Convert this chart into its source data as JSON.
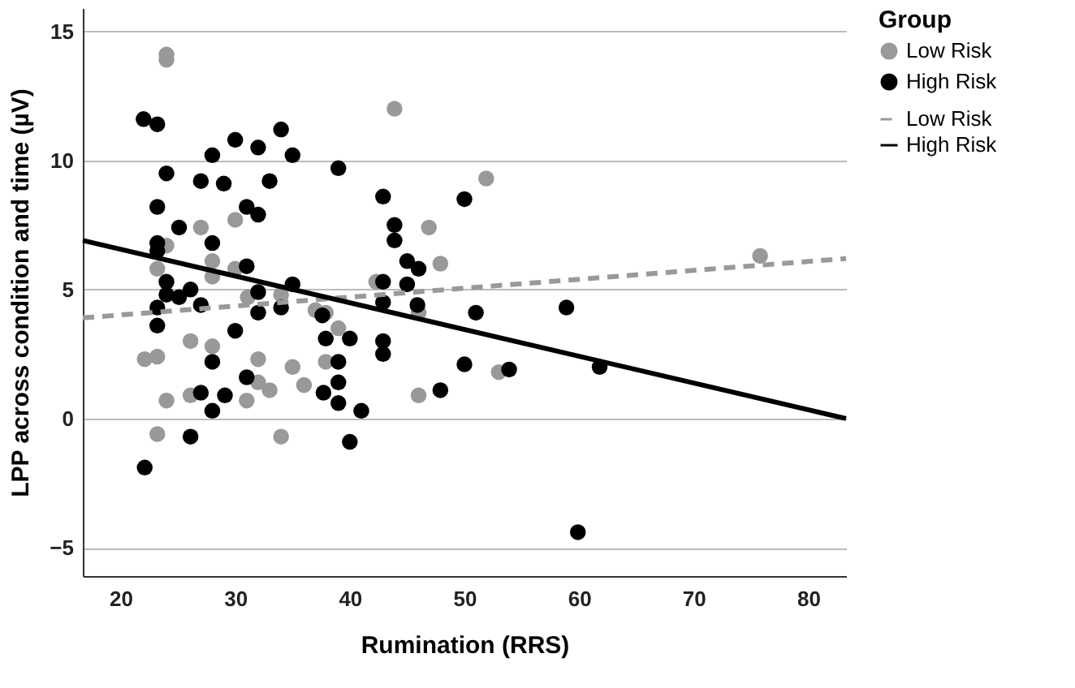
{
  "chart_data": {
    "type": "scatter",
    "xlabel": "Rumination (RRS)",
    "ylabel": "LPP across condition and time (µV)",
    "legend_title": "Group",
    "xlim": [
      16.7,
      83.3
    ],
    "xticks": [
      20,
      30,
      40,
      50,
      60,
      70,
      80
    ],
    "ylim": [
      -6.1,
      15.9
    ],
    "yticks": [
      -5,
      0,
      5,
      10,
      15
    ],
    "grid": "y",
    "legend": "top right",
    "series": [
      {
        "name": "Low Risk",
        "marker": "circle",
        "color": "#999999",
        "x": [
          24.0,
          24.0,
          43.9,
          27.0,
          30.0,
          24.0,
          23.2,
          28.0,
          28.0,
          30.0,
          46.9,
          47.9,
          42.3,
          31.1,
          34.0,
          37.0,
          46.0,
          51.9,
          75.8,
          22.1,
          23.2,
          26.1,
          28.0,
          32.0,
          35.0,
          36.0,
          32.0,
          33.0,
          31.0,
          26.1,
          24.0,
          23.2,
          34.0,
          37.9,
          39.0,
          37.9,
          46.0,
          53.0
        ],
        "values": [
          13.9,
          14.1,
          12.0,
          7.4,
          7.7,
          6.7,
          5.8,
          6.1,
          5.5,
          5.8,
          7.4,
          6.0,
          5.3,
          4.7,
          4.8,
          4.2,
          4.1,
          9.3,
          6.3,
          2.3,
          2.4,
          3.0,
          2.8,
          2.3,
          2.0,
          1.3,
          1.4,
          1.1,
          0.7,
          0.9,
          0.7,
          -0.6,
          -0.7,
          4.1,
          3.5,
          2.2,
          0.9,
          1.8
        ]
      },
      {
        "name": "High Risk",
        "marker": "circle",
        "color": "#000000",
        "x": [
          22.0,
          23.2,
          24.0,
          28.0,
          27.0,
          29.0,
          30.0,
          32.0,
          34.0,
          35.0,
          33.0,
          31.0,
          32.0,
          39.0,
          23.2,
          25.1,
          23.2,
          23.2,
          28.0,
          31.0,
          24.0,
          24.0,
          25.1,
          26.1,
          32.0,
          35.0,
          34.0,
          27.0,
          23.2,
          42.9,
          43.9,
          43.9,
          45.0,
          46.0,
          45.0,
          42.9,
          42.9,
          50.0,
          51.0,
          37.6,
          23.2,
          32.0,
          30.0,
          37.9,
          40.0,
          28.0,
          31.0,
          27.0,
          29.1,
          28.0,
          37.7,
          39.0,
          39.0,
          39.0,
          41.0,
          40.0,
          26.1,
          22.1,
          42.9,
          42.9,
          47.9,
          50.0,
          45.9,
          58.9,
          53.9,
          61.8,
          59.9
        ],
        "values": [
          11.6,
          11.4,
          9.5,
          10.2,
          9.2,
          9.1,
          10.8,
          10.5,
          11.2,
          10.2,
          9.2,
          8.2,
          7.9,
          9.7,
          8.2,
          7.4,
          6.8,
          6.5,
          6.8,
          5.9,
          5.3,
          4.8,
          4.7,
          5.0,
          4.9,
          5.2,
          4.3,
          4.4,
          4.3,
          8.6,
          7.5,
          6.9,
          6.1,
          5.8,
          5.2,
          5.3,
          4.5,
          8.5,
          4.1,
          4.0,
          3.6,
          4.1,
          3.4,
          3.1,
          3.1,
          2.2,
          1.6,
          1.0,
          0.9,
          0.3,
          1.0,
          2.2,
          1.4,
          0.6,
          0.3,
          -0.9,
          -0.7,
          -1.9,
          3.0,
          2.5,
          1.1,
          2.1,
          4.4,
          4.3,
          1.9,
          2.0,
          -4.4
        ]
      },
      {
        "name": "Low Risk",
        "type": "line",
        "line_style": "dashed",
        "color": "#999999",
        "x": [
          16.7,
          83.3
        ],
        "values": [
          3.9,
          6.2
        ]
      },
      {
        "name": "High Risk",
        "type": "line",
        "line_style": "solid",
        "color": "#000000",
        "x": [
          16.7,
          83.3
        ],
        "values": [
          6.9,
          0.0
        ]
      }
    ]
  }
}
